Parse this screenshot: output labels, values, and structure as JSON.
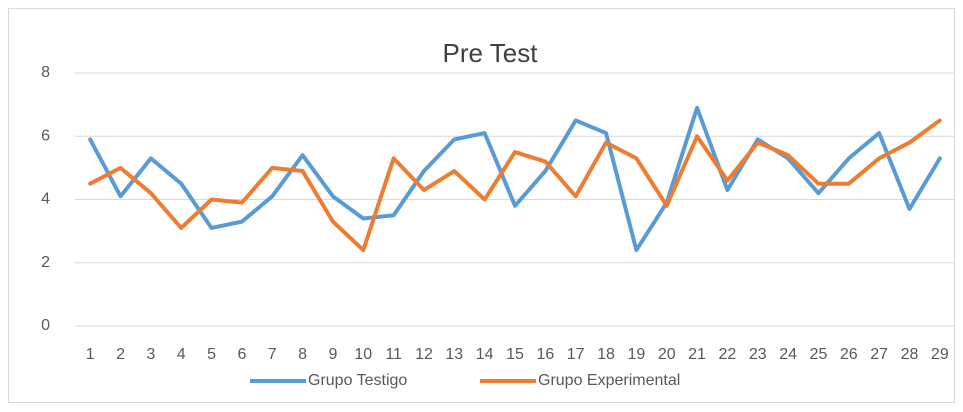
{
  "chart_data": {
    "type": "line",
    "title": "Pre Test",
    "categories": [
      "1",
      "2",
      "3",
      "4",
      "5",
      "6",
      "7",
      "8",
      "9",
      "10",
      "11",
      "12",
      "13",
      "14",
      "15",
      "16",
      "17",
      "18",
      "19",
      "20",
      "21",
      "22",
      "23",
      "24",
      "25",
      "26",
      "27",
      "28",
      "29"
    ],
    "series": [
      {
        "name": "Grupo Testigo",
        "color": "#5b9bd5",
        "values": [
          5.9,
          4.1,
          5.3,
          4.5,
          3.1,
          3.3,
          4.1,
          5.4,
          4.1,
          3.4,
          3.5,
          4.9,
          5.9,
          6.1,
          3.8,
          4.9,
          6.5,
          6.1,
          2.4,
          3.9,
          6.9,
          4.3,
          5.9,
          5.3,
          4.2,
          5.3,
          6.1,
          3.7,
          5.3
        ]
      },
      {
        "name": "Grupo Experimental",
        "color": "#ed7d31",
        "values": [
          4.5,
          5.0,
          4.2,
          3.1,
          4.0,
          3.9,
          5.0,
          4.9,
          3.3,
          2.4,
          5.3,
          4.3,
          4.9,
          4.0,
          5.5,
          5.2,
          4.1,
          5.8,
          5.3,
          3.8,
          6.0,
          4.6,
          5.8,
          5.4,
          4.5,
          4.5,
          5.3,
          5.8,
          6.5
        ]
      }
    ],
    "ylim": [
      0,
      8
    ],
    "yticks": [
      0,
      2,
      4,
      6,
      8
    ],
    "grid": true,
    "legend": "bottom"
  }
}
